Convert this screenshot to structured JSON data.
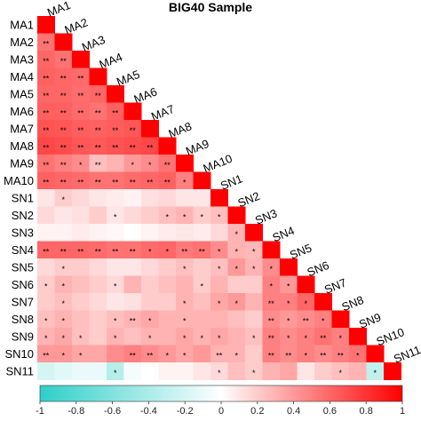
{
  "chart_data": {
    "type": "heatmap",
    "title": "BIG40 Sample",
    "variables": [
      "MA1",
      "MA2",
      "MA3",
      "MA4",
      "MA5",
      "MA6",
      "MA7",
      "MA8",
      "MA9",
      "MA10",
      "SN1",
      "SN2",
      "SN3",
      "SN4",
      "SN5",
      "SN6",
      "SN7",
      "SN8",
      "SN9",
      "SN10",
      "SN11"
    ],
    "values": [
      [
        1
      ],
      [
        0.55,
        1
      ],
      [
        0.6,
        0.55,
        1
      ],
      [
        0.62,
        0.6,
        0.58,
        1
      ],
      [
        0.6,
        0.6,
        0.57,
        0.6,
        1
      ],
      [
        0.62,
        0.62,
        0.58,
        0.55,
        0.62,
        1
      ],
      [
        0.68,
        0.66,
        0.63,
        0.62,
        0.64,
        0.66,
        1
      ],
      [
        0.72,
        0.7,
        0.66,
        0.65,
        0.68,
        0.7,
        0.72,
        1
      ],
      [
        0.55,
        0.5,
        0.45,
        0.25,
        0.3,
        0.4,
        0.45,
        0.55,
        1
      ],
      [
        0.62,
        0.6,
        0.58,
        0.55,
        0.55,
        0.58,
        0.6,
        0.62,
        0.5,
        1
      ],
      [
        0.1,
        0.2,
        0.15,
        0.1,
        0.08,
        0.05,
        0.12,
        0.15,
        0.1,
        0.1,
        1
      ],
      [
        0.15,
        0.1,
        0.12,
        0.2,
        0.1,
        0.15,
        0.2,
        0.25,
        0.3,
        0.2,
        0.25,
        1
      ],
      [
        0.05,
        0.05,
        0.08,
        0.05,
        0.03,
        0,
        0.05,
        0.08,
        0.1,
        0.08,
        0.15,
        0.3,
        1
      ],
      [
        0.6,
        0.6,
        0.6,
        0.58,
        0.55,
        0.55,
        0.58,
        0.6,
        0.52,
        0.55,
        0.45,
        0.3,
        0.28,
        1
      ],
      [
        0.15,
        0.2,
        0.2,
        0.15,
        0.1,
        0.1,
        0.15,
        0.2,
        0.25,
        0.2,
        0.25,
        0.4,
        0.3,
        0.45,
        1
      ],
      [
        0.2,
        0.3,
        0.25,
        0.2,
        0.15,
        0.3,
        0.2,
        0.25,
        0.3,
        0.2,
        0.3,
        0.2,
        0.2,
        0.5,
        0.4,
        1
      ],
      [
        0.2,
        0.25,
        0.2,
        0.15,
        0.1,
        0.12,
        0.2,
        0.2,
        0.3,
        0.25,
        0.35,
        0.4,
        0.3,
        0.5,
        0.5,
        0.6,
        1
      ],
      [
        0.25,
        0.3,
        0.25,
        0.2,
        0.25,
        0.3,
        0.35,
        0.3,
        0.3,
        0.3,
        0.3,
        0.25,
        0.2,
        0.45,
        0.4,
        0.45,
        0.5,
        1
      ],
      [
        0.3,
        0.35,
        0.25,
        0.2,
        0.3,
        0.25,
        0.3,
        0.3,
        0.35,
        0.3,
        0.35,
        0.3,
        0.25,
        0.5,
        0.45,
        0.5,
        0.55,
        0.5,
        1
      ],
      [
        0.4,
        0.4,
        0.35,
        0.35,
        0.45,
        0.5,
        0.45,
        0.4,
        0.35,
        0.4,
        0.3,
        0.3,
        0.2,
        0.5,
        0.45,
        0.5,
        0.45,
        0.5,
        0.55,
        1
      ],
      [
        -0.2,
        -0.15,
        -0.1,
        -0.1,
        -0.35,
        -0.05,
        0,
        0.05,
        0.05,
        0.1,
        0.15,
        0.25,
        0.2,
        0.3,
        0.35,
        0.1,
        0.2,
        0.25,
        0.3,
        -0.3,
        1
      ]
    ],
    "significance": [
      [
        ""
      ],
      [
        "**",
        ""
      ],
      [
        "**",
        "**",
        ""
      ],
      [
        "**",
        "**",
        "**",
        ""
      ],
      [
        "**",
        "**",
        "**",
        "**",
        ""
      ],
      [
        "**",
        "**",
        "**",
        "**",
        "**",
        ""
      ],
      [
        "**",
        "**",
        "**",
        "**",
        "**",
        "**",
        ""
      ],
      [
        "**",
        "**",
        "**",
        "**",
        "**",
        "**",
        "**",
        ""
      ],
      [
        "**",
        "**",
        "*",
        "**",
        "",
        "*",
        "*",
        "**",
        ""
      ],
      [
        "**",
        "**",
        "**",
        "**",
        "**",
        "**",
        "**",
        "**",
        "*",
        ""
      ],
      [
        "",
        "*",
        "",
        "",
        "",
        "",
        "",
        "",
        "",
        "",
        ""
      ],
      [
        "",
        "",
        "",
        "",
        "*",
        "",
        "",
        "*",
        "*",
        "*",
        "*",
        ""
      ],
      [
        "",
        "",
        "",
        "",
        "",
        "",
        "",
        "",
        "",
        "",
        "",
        "*",
        ""
      ],
      [
        "**",
        "**",
        "**",
        "**",
        "**",
        "**",
        "*",
        "*",
        "**",
        "**",
        "*",
        "*",
        "*",
        ""
      ],
      [
        "",
        "*",
        "",
        "",
        "",
        "",
        "",
        "",
        "*",
        "",
        "*",
        "*",
        "*",
        "*",
        ""
      ],
      [
        "*",
        "*",
        "",
        "",
        "*",
        "",
        "",
        "",
        "",
        "*",
        "",
        "",
        "",
        "*",
        "*",
        ""
      ],
      [
        "",
        "*",
        "",
        "",
        "",
        "",
        "",
        "",
        "*",
        "",
        "*",
        "*",
        "",
        "**",
        "*",
        "*",
        ""
      ],
      [
        "*",
        "*",
        "",
        "",
        "*",
        "**",
        "*",
        "",
        "*",
        "",
        "",
        "",
        "",
        "**",
        "*",
        "**",
        "*",
        ""
      ],
      [
        "*",
        "*",
        "*",
        "",
        "*",
        "",
        "*",
        "",
        "*",
        "*",
        "*",
        "",
        "*",
        "**",
        "*",
        "*",
        "**",
        "*",
        ""
      ],
      [
        "**",
        "*",
        "*",
        "",
        "",
        "**",
        "**",
        "*",
        "*",
        "",
        "**",
        "*",
        "",
        "**",
        "**",
        "*",
        "**",
        "**",
        "*",
        ""
      ],
      [
        "",
        "",
        "",
        "",
        "*",
        "",
        "",
        "",
        "",
        "",
        "*",
        "",
        "*",
        "",
        "",
        "",
        "",
        "*",
        "",
        "*",
        ""
      ]
    ],
    "color_scale": {
      "min": -1,
      "max": 1,
      "low_color": "#2ecfc9",
      "mid_color": "#ffffff",
      "high_color": "#ff0000"
    },
    "colorbar_ticks": [
      "-1",
      "-0.8",
      "-0.6",
      "-0.4",
      "-0.2",
      "0",
      "0.2",
      "0.4",
      "0.6",
      "0.8",
      "1"
    ]
  }
}
